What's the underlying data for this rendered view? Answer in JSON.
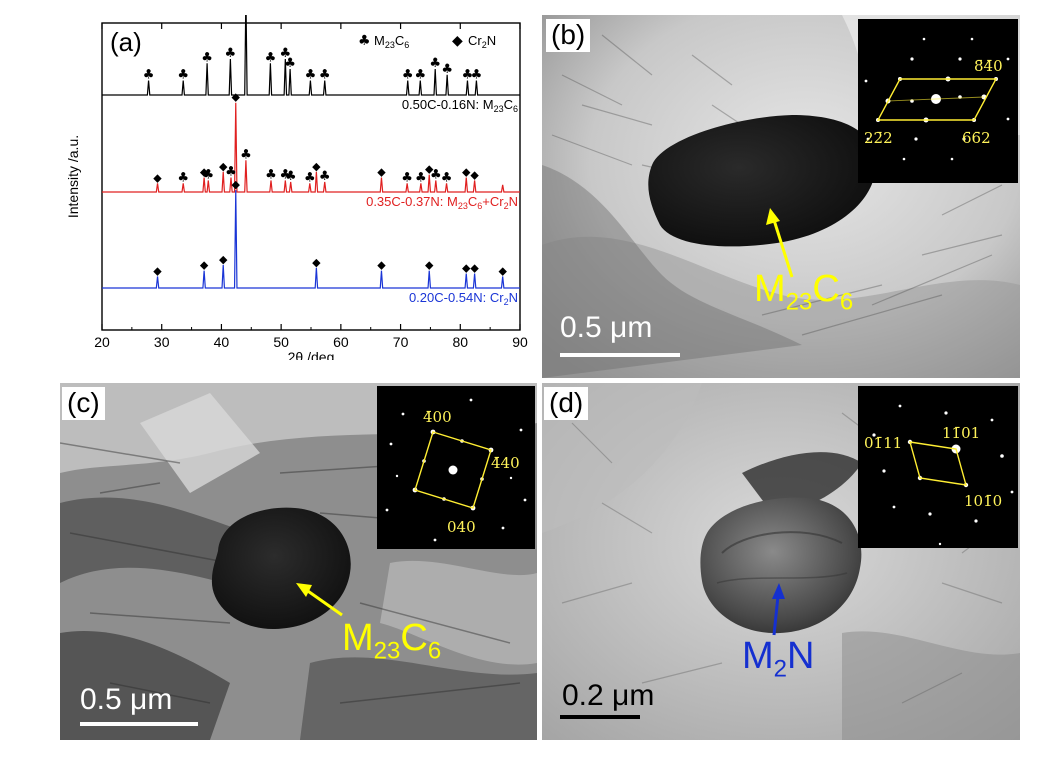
{
  "panel_a": {
    "label": "(a)",
    "legend": [
      {
        "symbol": "♣",
        "text": "M",
        "sub": "23",
        "text2": "C",
        "sub2": "6"
      },
      {
        "symbol": "◆",
        "text": "Cr",
        "sub": "2",
        "text2": "N",
        "sub2": ""
      }
    ],
    "chart_data": {
      "type": "line",
      "xlabel": "2θ /deg",
      "ylabel": "Intensity /a.u.",
      "xlim": [
        20,
        90
      ],
      "xticks": [
        20,
        30,
        40,
        50,
        60,
        70,
        80,
        90
      ],
      "series": [
        {
          "name": "0.50C-0.16N: M23C6",
          "label_parts": [
            "0.50C-0.16N: M",
            "23",
            "C",
            "6",
            ""
          ],
          "color": "#000000",
          "peaks": [
            {
              "x": 27.8,
              "h": 0.1,
              "m": "club"
            },
            {
              "x": 33.6,
              "h": 0.1,
              "m": "club"
            },
            {
              "x": 37.6,
              "h": 0.22,
              "m": "club"
            },
            {
              "x": 41.5,
              "h": 0.25,
              "m": "club"
            },
            {
              "x": 44.1,
              "h": 0.7,
              "m": "club"
            },
            {
              "x": 48.2,
              "h": 0.22,
              "m": "club"
            },
            {
              "x": 50.7,
              "h": 0.25,
              "m": "club"
            },
            {
              "x": 51.5,
              "h": 0.18,
              "m": "club"
            },
            {
              "x": 54.9,
              "h": 0.1,
              "m": "club"
            },
            {
              "x": 57.3,
              "h": 0.1,
              "m": "club"
            },
            {
              "x": 71.2,
              "h": 0.1,
              "m": "club"
            },
            {
              "x": 73.3,
              "h": 0.1,
              "m": "club"
            },
            {
              "x": 75.8,
              "h": 0.18,
              "m": "club"
            },
            {
              "x": 77.8,
              "h": 0.14,
              "m": "club"
            },
            {
              "x": 81.2,
              "h": 0.1,
              "m": "club"
            },
            {
              "x": 82.7,
              "h": 0.1,
              "m": "club"
            }
          ]
        },
        {
          "name": "0.35C-0.37N: M23C6+Cr2N",
          "label_parts": [
            "0.35C-0.37N: M",
            "23",
            "C",
            "6",
            "+Cr",
            "2",
            "N"
          ],
          "color": "#e02020",
          "peaks": [
            {
              "x": 29.3,
              "h": 0.06,
              "m": "diamond"
            },
            {
              "x": 33.6,
              "h": 0.06,
              "m": "club"
            },
            {
              "x": 37.1,
              "h": 0.1,
              "m": "diamond"
            },
            {
              "x": 37.8,
              "h": 0.08,
              "m": "club"
            },
            {
              "x": 40.3,
              "h": 0.14,
              "m": "diamond"
            },
            {
              "x": 41.6,
              "h": 0.1,
              "m": "club"
            },
            {
              "x": 42.4,
              "h": 0.62,
              "m": "diamond"
            },
            {
              "x": 44.1,
              "h": 0.22,
              "m": "club"
            },
            {
              "x": 48.3,
              "h": 0.08,
              "m": "club"
            },
            {
              "x": 50.7,
              "h": 0.08,
              "m": "club"
            },
            {
              "x": 51.6,
              "h": 0.07,
              "m": "club"
            },
            {
              "x": 54.8,
              "h": 0.06,
              "m": "club"
            },
            {
              "x": 55.9,
              "h": 0.14,
              "m": "diamond"
            },
            {
              "x": 57.3,
              "h": 0.07,
              "m": "club"
            },
            {
              "x": 66.8,
              "h": 0.1,
              "m": "diamond"
            },
            {
              "x": 71.1,
              "h": 0.06,
              "m": "club"
            },
            {
              "x": 73.4,
              "h": 0.06,
              "m": "club"
            },
            {
              "x": 74.8,
              "h": 0.12,
              "m": "diamond"
            },
            {
              "x": 75.9,
              "h": 0.08,
              "m": "club"
            },
            {
              "x": 77.7,
              "h": 0.06,
              "m": "club"
            },
            {
              "x": 81.0,
              "h": 0.1,
              "m": "diamond"
            },
            {
              "x": 82.4,
              "h": 0.08,
              "m": "diamond"
            },
            {
              "x": 87.1,
              "h": 0.05,
              "m": ""
            }
          ]
        },
        {
          "name": "0.20C-0.54N: Cr2N",
          "label_parts": [
            "0.20C-0.54N: Cr",
            "2",
            "N"
          ],
          "color": "#1a35d6",
          "peaks": [
            {
              "x": 29.3,
              "h": 0.08,
              "m": "diamond"
            },
            {
              "x": 37.1,
              "h": 0.12,
              "m": "diamond"
            },
            {
              "x": 40.3,
              "h": 0.16,
              "m": "diamond"
            },
            {
              "x": 42.4,
              "h": 0.68,
              "m": "diamond"
            },
            {
              "x": 55.9,
              "h": 0.14,
              "m": "diamond"
            },
            {
              "x": 66.8,
              "h": 0.12,
              "m": "diamond"
            },
            {
              "x": 74.8,
              "h": 0.12,
              "m": "diamond"
            },
            {
              "x": 81.0,
              "h": 0.1,
              "m": "diamond"
            },
            {
              "x": 82.4,
              "h": 0.1,
              "m": "diamond"
            },
            {
              "x": 87.1,
              "h": 0.08,
              "m": "diamond"
            }
          ]
        }
      ]
    }
  },
  "panel_b": {
    "label": "(b)",
    "phase": {
      "text": "M",
      "sub1": "23",
      "text2": "C",
      "sub2": "6"
    },
    "scale": "0.5 μm",
    "indices": {
      "top_right": "8̄4̄0",
      "bottom_left": "22̄2",
      "bottom_right": "6̄6̄2"
    },
    "phase_color": "#ffff00"
  },
  "panel_c": {
    "label": "(c)",
    "phase": {
      "text": "M",
      "sub1": "23",
      "text2": "C",
      "sub2": "6"
    },
    "scale": "0.5 μm",
    "indices": {
      "top": "4̄00",
      "right": "4̄40",
      "bottom": "040"
    },
    "phase_color": "#ffff00"
  },
  "panel_d": {
    "label": "(d)",
    "phase": {
      "text": "M",
      "sub1": "2",
      "text2": "N",
      "sub2": ""
    },
    "scale": "0.2 μm",
    "indices": {
      "left": "01̄11",
      "top": "11̄01",
      "right": "101̄0"
    },
    "phase_color": "#1530d0"
  }
}
